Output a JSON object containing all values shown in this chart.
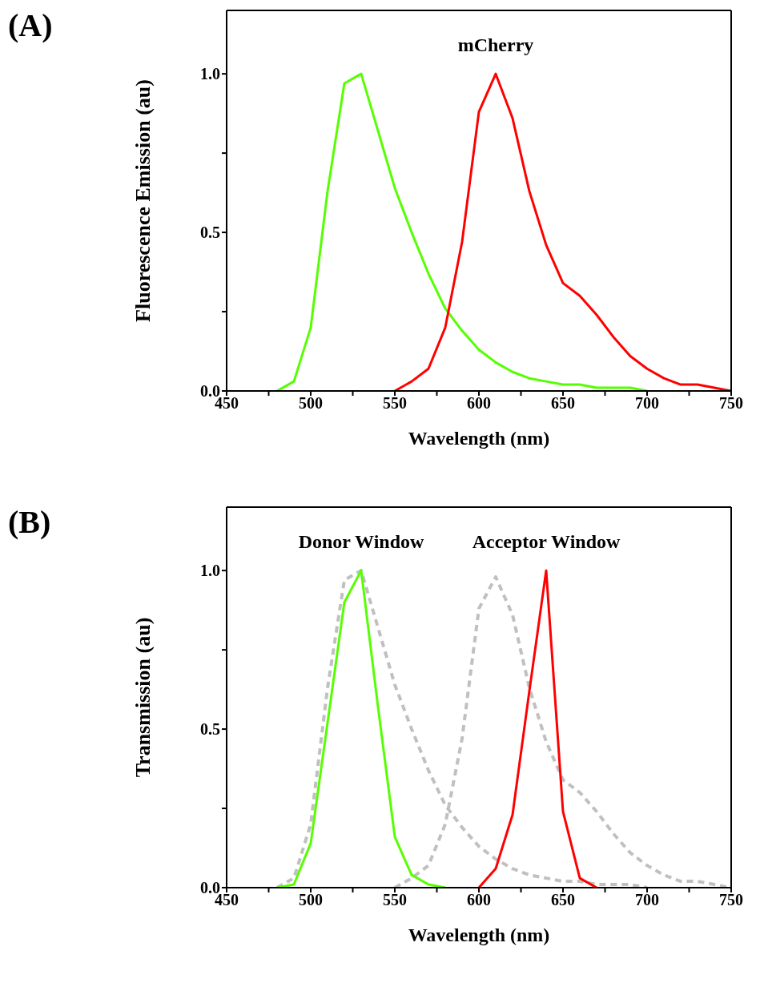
{
  "chart_data": [
    {
      "type": "line",
      "title": "(A)",
      "xlabel": "Wavelength (nm)",
      "ylabel": "Fluorescence Emission (au)",
      "xlim": [
        450,
        750
      ],
      "xticks": [
        450,
        {
          "value": 475,
          "label": null
        },
        500,
        {
          "value": 525,
          "label": null
        },
        550,
        {
          "value": 575,
          "label": null
        },
        600,
        {
          "value": 625,
          "label": null
        },
        650,
        {
          "value": 675,
          "label": null
        },
        700,
        {
          "value": 725,
          "label": null
        },
        750
      ],
      "ylim": [
        0,
        1.2
      ],
      "yticks": [
        {
          "value": 0,
          "label": "0.0"
        },
        {
          "value": 0.25,
          "label": null
        },
        {
          "value": 0.5,
          "label": "0.5"
        },
        {
          "value": 0.75,
          "label": null
        },
        {
          "value": 1,
          "label": "1.0"
        }
      ],
      "marker": "none",
      "line_style": "solid",
      "annotations": [
        "mCherry"
      ],
      "series": [
        {
          "color": "#55ff00",
          "x": [
            480,
            490,
            500,
            510,
            520,
            530,
            540,
            550,
            560,
            570,
            580,
            590,
            600,
            610,
            620,
            630,
            640,
            650,
            660,
            670,
            680,
            690,
            700
          ],
          "values": [
            0,
            0.03,
            0.2,
            0.63,
            0.97,
            1.0,
            0.82,
            0.64,
            0.5,
            0.37,
            0.26,
            0.19,
            0.13,
            0.09,
            0.06,
            0.04,
            0.03,
            0.02,
            0.02,
            0.01,
            0.01,
            0.01,
            0
          ]
        },
        {
          "color": "#ff0000",
          "x": [
            550,
            560,
            570,
            580,
            590,
            600,
            610,
            620,
            630,
            640,
            650,
            660,
            670,
            680,
            690,
            700,
            710,
            720,
            730,
            740,
            750
          ],
          "values": [
            0,
            0.03,
            0.07,
            0.2,
            0.47,
            0.88,
            1.0,
            0.86,
            0.63,
            0.46,
            0.34,
            0.3,
            0.24,
            0.17,
            0.11,
            0.07,
            0.04,
            0.02,
            0.02,
            0.01,
            0
          ]
        }
      ]
    },
    {
      "type": "line",
      "title": "(B)",
      "xlabel": "Wavelength (nm)",
      "ylabel": "Transmission (au)",
      "xlim": [
        450,
        750
      ],
      "xticks": [
        450,
        {
          "value": 475,
          "label": null
        },
        500,
        {
          "value": 525,
          "label": null
        },
        550,
        {
          "value": 575,
          "label": null
        },
        600,
        {
          "value": 625,
          "label": null
        },
        650,
        {
          "value": 675,
          "label": null
        },
        700,
        {
          "value": 725,
          "label": null
        },
        750
      ],
      "ylim": [
        0,
        1.2
      ],
      "yticks": [
        {
          "value": 0,
          "label": "0.0"
        },
        {
          "value": 0.25,
          "label": null
        },
        {
          "value": 0.5,
          "label": "0.5"
        },
        {
          "value": 0.75,
          "label": null
        },
        {
          "value": 1,
          "label": "1.0"
        }
      ],
      "marker": "none",
      "line_style": "solid",
      "annotations": [
        "Donor Window",
        "Acceptor Window"
      ],
      "series": [
        {
          "color": "#c0c0c0",
          "line_style": "dashed",
          "x": [
            480,
            490,
            500,
            510,
            520,
            530,
            540,
            550,
            560,
            570,
            580,
            590,
            600,
            610,
            620,
            630,
            640,
            650,
            660,
            670,
            680,
            690,
            700
          ],
          "values": [
            0,
            0.03,
            0.2,
            0.63,
            0.97,
            1.0,
            0.82,
            0.64,
            0.5,
            0.37,
            0.26,
            0.19,
            0.13,
            0.09,
            0.06,
            0.04,
            0.03,
            0.02,
            0.02,
            0.01,
            0.01,
            0.01,
            0
          ]
        },
        {
          "color": "#c0c0c0",
          "line_style": "dashed",
          "x": [
            550,
            560,
            570,
            580,
            590,
            600,
            610,
            620,
            630,
            640,
            650,
            660,
            670,
            680,
            690,
            700,
            710,
            720,
            730,
            740,
            750
          ],
          "values": [
            0,
            0.03,
            0.07,
            0.2,
            0.47,
            0.88,
            0.98,
            0.86,
            0.63,
            0.46,
            0.34,
            0.3,
            0.24,
            0.17,
            0.11,
            0.07,
            0.04,
            0.02,
            0.02,
            0.01,
            0
          ]
        },
        {
          "color": "#55ff00",
          "x": [
            480,
            490,
            500,
            510,
            520,
            530,
            540,
            550,
            560,
            570,
            580
          ],
          "values": [
            0,
            0.01,
            0.14,
            0.52,
            0.9,
            1.0,
            0.57,
            0.16,
            0.04,
            0.01,
            0
          ]
        },
        {
          "color": "#ff0000",
          "x": [
            600,
            610,
            620,
            630,
            640,
            650,
            660,
            670
          ],
          "values": [
            0,
            0.06,
            0.23,
            0.62,
            1.0,
            0.24,
            0.03,
            0
          ]
        }
      ]
    }
  ]
}
